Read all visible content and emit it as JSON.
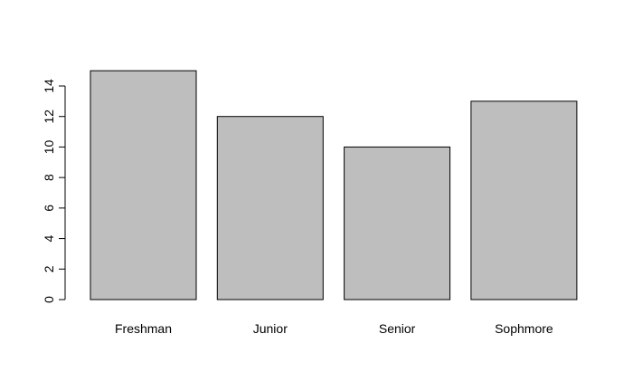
{
  "chart_data": {
    "type": "bar",
    "categories": [
      "Freshman",
      "Junior",
      "Senior",
      "Sophmore"
    ],
    "values": [
      15,
      12,
      10,
      13
    ],
    "ylim": [
      0,
      14
    ],
    "yticks": [
      0,
      2,
      4,
      6,
      8,
      10,
      12,
      14
    ],
    "bar_color": "#bebebe",
    "border_color": "#000000",
    "grid": false,
    "legend": "none"
  }
}
